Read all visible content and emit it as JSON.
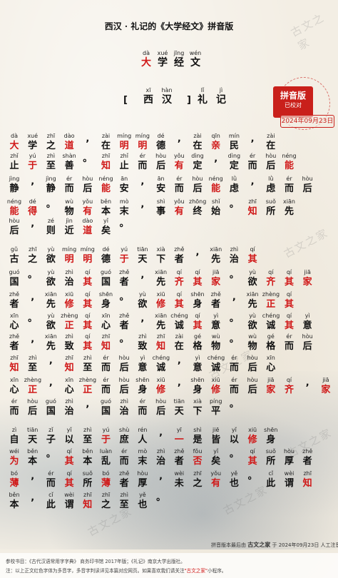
{
  "title": "西汉 · 礼记的《大学经文》拼音版",
  "heading": [
    [
      "dà",
      "大",
      1
    ],
    [
      "xué",
      "学",
      0
    ],
    [
      "jīng",
      "经",
      0
    ],
    [
      "wén",
      "文",
      0
    ]
  ],
  "author_line": {
    "open": "[",
    "close": "]",
    "dynasty": [
      [
        "xī",
        "西"
      ],
      [
        "hàn",
        "汉"
      ]
    ],
    "name": [
      [
        "lǐ",
        "礼"
      ],
      [
        "jì",
        "记"
      ]
    ]
  },
  "seal": {
    "title": "拼音版",
    "subtitle": "已校对",
    "date": "2024年09月23日"
  },
  "lines": [
    [
      [
        "dà",
        "大",
        1
      ],
      [
        "xué",
        "学",
        0
      ],
      [
        "zhī",
        "之",
        0
      ],
      [
        "dào",
        "道",
        1
      ],
      [
        "",
        ",",
        0
      ],
      [
        "zài",
        "在",
        0
      ],
      [
        "míng",
        "明",
        1
      ],
      [
        "míng",
        "明",
        1
      ],
      [
        "dé",
        "德",
        0
      ],
      [
        "",
        ",",
        0
      ],
      [
        "zài",
        "在",
        0
      ],
      [
        "qīn",
        "亲",
        1
      ],
      [
        "mín",
        "民",
        0
      ],
      [
        "",
        ",",
        0
      ],
      [
        "zài",
        "在",
        0
      ]
    ],
    [
      [
        "zhǐ",
        "止",
        0
      ],
      [
        "yú",
        "于",
        1
      ],
      [
        "zhì",
        "至",
        0
      ],
      [
        "shàn",
        "善",
        0
      ],
      [
        "",
        "。",
        0
      ],
      [
        "zhī",
        "知",
        1
      ],
      [
        "zhǐ",
        "止",
        0
      ],
      [
        "ér",
        "而",
        0
      ],
      [
        "hòu",
        "后",
        0
      ],
      [
        "yǒu",
        "有",
        1
      ],
      [
        "dìng",
        "定",
        0
      ],
      [
        "",
        ",",
        0
      ],
      [
        "dìng",
        "定",
        0
      ],
      [
        "ér",
        "而",
        0
      ],
      [
        "hòu",
        "后",
        0
      ],
      [
        "néng",
        "能",
        1
      ]
    ],
    [
      [
        "jìng",
        "静",
        0
      ],
      [
        "",
        ",",
        0
      ],
      [
        "jìng",
        "静",
        0
      ],
      [
        "ér",
        "而",
        0
      ],
      [
        "hòu",
        "后",
        0
      ],
      [
        "néng",
        "能",
        1
      ],
      [
        "ān",
        "安",
        0
      ],
      [
        "",
        ",",
        0
      ],
      [
        "ān",
        "安",
        0
      ],
      [
        "ér",
        "而",
        0
      ],
      [
        "hòu",
        "后",
        0
      ],
      [
        "néng",
        "能",
        1
      ],
      [
        "lǜ",
        "虑",
        0
      ],
      [
        "",
        ",",
        0
      ],
      [
        "lǜ",
        "虑",
        0
      ],
      [
        "ér",
        "而",
        0
      ],
      [
        "hòu",
        "后",
        0
      ]
    ],
    [
      [
        "néng",
        "能",
        1
      ],
      [
        "dé",
        "得",
        1
      ],
      [
        "",
        "。",
        0
      ],
      [
        "wù",
        "物",
        0
      ],
      [
        "yǒu",
        "有",
        1
      ],
      [
        "běn",
        "本",
        0
      ],
      [
        "mò",
        "末",
        0
      ],
      [
        "",
        ",",
        0
      ],
      [
        "shì",
        "事",
        0
      ],
      [
        "yǒu",
        "有",
        1
      ],
      [
        "zhōng",
        "终",
        0
      ],
      [
        "shǐ",
        "始",
        0
      ],
      [
        "",
        "。",
        0
      ],
      [
        "zhī",
        "知",
        1
      ],
      [
        "suǒ",
        "所",
        0
      ],
      [
        "xiān",
        "先",
        0
      ]
    ],
    [
      [
        "hòu",
        "后",
        0
      ],
      [
        "",
        ",",
        0
      ],
      [
        "zé",
        "则",
        0
      ],
      [
        "jìn",
        "近",
        0
      ],
      [
        "dào",
        "道",
        1
      ],
      [
        "yǐ",
        "矣",
        0
      ],
      [
        "",
        "。",
        0
      ]
    ],
    [
      [
        "gǔ",
        "古",
        0
      ],
      [
        "zhī",
        "之",
        0
      ],
      [
        "yù",
        "欲",
        0
      ],
      [
        "míng",
        "明",
        1
      ],
      [
        "míng",
        "明",
        1
      ],
      [
        "dé",
        "德",
        0
      ],
      [
        "yú",
        "于",
        1
      ],
      [
        "tiān",
        "天",
        0
      ],
      [
        "xià",
        "下",
        0
      ],
      [
        "zhě",
        "者",
        0
      ],
      [
        "",
        ",",
        0
      ],
      [
        "xiān",
        "先",
        0
      ],
      [
        "zhì",
        "治",
        0
      ],
      [
        "qí",
        "其",
        1
      ]
    ],
    [
      [
        "guó",
        "国",
        0
      ],
      [
        "",
        "。",
        0
      ],
      [
        "yù",
        "欲",
        0
      ],
      [
        "zhì",
        "治",
        0
      ],
      [
        "qí",
        "其",
        1
      ],
      [
        "guó",
        "国",
        0
      ],
      [
        "zhě",
        "者",
        0
      ],
      [
        "",
        ",",
        0
      ],
      [
        "xiān",
        "先",
        0
      ],
      [
        "qí",
        "齐",
        1
      ],
      [
        "qí",
        "其",
        1
      ],
      [
        "jiā",
        "家",
        1
      ],
      [
        "",
        "。",
        0
      ],
      [
        "yù",
        "欲",
        0
      ],
      [
        "qí",
        "齐",
        1
      ],
      [
        "qí",
        "其",
        1
      ],
      [
        "jiā",
        "家",
        1
      ]
    ],
    [
      [
        "zhě",
        "者",
        0
      ],
      [
        "",
        ",",
        0
      ],
      [
        "xiān",
        "先",
        0
      ],
      [
        "xiū",
        "修",
        1
      ],
      [
        "qí",
        "其",
        1
      ],
      [
        "shēn",
        "身",
        0
      ],
      [
        "",
        "。",
        0
      ],
      [
        "yù",
        "欲",
        0
      ],
      [
        "xiū",
        "修",
        1
      ],
      [
        "qí",
        "其",
        1
      ],
      [
        "shēn",
        "身",
        0
      ],
      [
        "zhě",
        "者",
        0
      ],
      [
        "",
        ",",
        0
      ],
      [
        "xiān",
        "先",
        0
      ],
      [
        "zhèng",
        "正",
        1
      ],
      [
        "qí",
        "其",
        1
      ]
    ],
    [
      [
        "xīn",
        "心",
        0
      ],
      [
        "",
        "。",
        0
      ],
      [
        "yù",
        "欲",
        0
      ],
      [
        "zhèng",
        "正",
        1
      ],
      [
        "qí",
        "其",
        1
      ],
      [
        "xīn",
        "心",
        0
      ],
      [
        "zhě",
        "者",
        0
      ],
      [
        "",
        ",",
        0
      ],
      [
        "xiān",
        "先",
        0
      ],
      [
        "chéng",
        "诚",
        0
      ],
      [
        "qí",
        "其",
        1
      ],
      [
        "yì",
        "意",
        0
      ],
      [
        "",
        "。",
        0
      ],
      [
        "yù",
        "欲",
        0
      ],
      [
        "chéng",
        "诚",
        0
      ],
      [
        "qí",
        "其",
        1
      ],
      [
        "yì",
        "意",
        0
      ]
    ],
    [
      [
        "zhě",
        "者",
        0
      ],
      [
        "",
        ",",
        0
      ],
      [
        "xiān",
        "先",
        0
      ],
      [
        "zhì",
        "致",
        0
      ],
      [
        "qí",
        "其",
        1
      ],
      [
        "zhī",
        "知",
        1
      ],
      [
        "",
        "。",
        0
      ],
      [
        "zhì",
        "致",
        0
      ],
      [
        "zhī",
        "知",
        1
      ],
      [
        "zài",
        "在",
        0
      ],
      [
        "gé",
        "格",
        0
      ],
      [
        "wù",
        "物",
        0
      ],
      [
        "",
        "。",
        0
      ],
      [
        "wù",
        "物",
        0
      ],
      [
        "gé",
        "格",
        0
      ],
      [
        "ér",
        "而",
        0
      ],
      [
        "hòu",
        "后",
        0
      ]
    ],
    [
      [
        "zhī",
        "知",
        1
      ],
      [
        "zhì",
        "至",
        0
      ],
      [
        "",
        ",",
        0
      ],
      [
        "zhī",
        "知",
        1
      ],
      [
        "zhì",
        "至",
        0
      ],
      [
        "ér",
        "而",
        0
      ],
      [
        "hòu",
        "后",
        0
      ],
      [
        "yì",
        "意",
        0
      ],
      [
        "chéng",
        "诚",
        0
      ],
      [
        "",
        ",",
        0
      ],
      [
        "yì",
        "意",
        0
      ],
      [
        "chéng",
        "诚",
        0
      ],
      [
        "ér",
        "而",
        0
      ],
      [
        "hòu",
        "后",
        0
      ],
      [
        "xīn",
        "心",
        0
      ]
    ],
    [
      [
        "xīn",
        "心",
        0
      ],
      [
        "zhèng",
        "正",
        1
      ],
      [
        "",
        ",",
        0
      ],
      [
        "xīn",
        "心",
        0
      ],
      [
        "zhèng",
        "正",
        1
      ],
      [
        "ér",
        "而",
        0
      ],
      [
        "hòu",
        "后",
        0
      ],
      [
        "shēn",
        "身",
        0
      ],
      [
        "xiū",
        "修",
        1
      ],
      [
        "",
        ",",
        0
      ],
      [
        "shēn",
        "身",
        0
      ],
      [
        "xiū",
        "修",
        1
      ],
      [
        "ér",
        "而",
        0
      ],
      [
        "hòu",
        "后",
        0
      ],
      [
        "jiā",
        "家",
        1
      ],
      [
        "qí",
        "齐",
        1
      ],
      [
        "",
        ",",
        0
      ],
      [
        "jiā",
        "家",
        1
      ],
      [
        "qí",
        "齐",
        1
      ]
    ],
    [
      [
        "ér",
        "而",
        0
      ],
      [
        "hòu",
        "后",
        0
      ],
      [
        "guó",
        "国",
        0
      ],
      [
        "zhì",
        "治",
        0
      ],
      [
        "",
        ",",
        0
      ],
      [
        "guó",
        "国",
        0
      ],
      [
        "zhì",
        "治",
        0
      ],
      [
        "ér",
        "而",
        0
      ],
      [
        "hòu",
        "后",
        0
      ],
      [
        "tiān",
        "天",
        0
      ],
      [
        "xià",
        "下",
        0
      ],
      [
        "píng",
        "平",
        0
      ],
      [
        "",
        "。",
        0
      ]
    ],
    [
      [
        "zì",
        "自",
        0
      ],
      [
        "tiān",
        "天",
        0
      ],
      [
        "zǐ",
        "子",
        0
      ],
      [
        "yǐ",
        "以",
        0
      ],
      [
        "zhì",
        "至",
        0
      ],
      [
        "yú",
        "于",
        1
      ],
      [
        "shù",
        "庶",
        0
      ],
      [
        "rén",
        "人",
        0
      ],
      [
        "",
        ",",
        0
      ],
      [
        "yī",
        "一",
        1
      ],
      [
        "shì",
        "是",
        0
      ],
      [
        "jiē",
        "皆",
        0
      ],
      [
        "yǐ",
        "以",
        0
      ],
      [
        "xiū",
        "修",
        1
      ],
      [
        "shēn",
        "身",
        0
      ]
    ],
    [
      [
        "wéi",
        "为",
        1
      ],
      [
        "běn",
        "本",
        0
      ],
      [
        "",
        "。",
        0
      ],
      [
        "qí",
        "其",
        1
      ],
      [
        "běn",
        "本",
        0
      ],
      [
        "luàn",
        "乱",
        0
      ],
      [
        "ér",
        "而",
        0
      ],
      [
        "mò",
        "末",
        0
      ],
      [
        "zhì",
        "治",
        0
      ],
      [
        "zhě",
        "者",
        0
      ],
      [
        "fǒu",
        "否",
        1
      ],
      [
        "yǐ",
        "矣",
        0
      ],
      [
        "",
        "。",
        0
      ],
      [
        "qí",
        "其",
        1
      ],
      [
        "suǒ",
        "所",
        0
      ],
      [
        "hòu",
        "厚",
        0
      ],
      [
        "zhě",
        "者",
        0
      ]
    ],
    [
      [
        "bó",
        "薄",
        1
      ],
      [
        "",
        ",",
        0
      ],
      [
        "ér",
        "而",
        0
      ],
      [
        "qí",
        "其",
        1
      ],
      [
        "suǒ",
        "所",
        0
      ],
      [
        "bó",
        "薄",
        1
      ],
      [
        "zhě",
        "者",
        0
      ],
      [
        "hòu",
        "厚",
        0
      ],
      [
        "",
        ",",
        0
      ],
      [
        "wèi",
        "未",
        0
      ],
      [
        "zhī",
        "之",
        0
      ],
      [
        "yǒu",
        "有",
        1
      ],
      [
        "yě",
        "也",
        0
      ],
      [
        "",
        "。",
        0
      ],
      [
        "cǐ",
        "此",
        0
      ],
      [
        "wèi",
        "谓",
        0
      ],
      [
        "zhī",
        "知",
        1
      ]
    ],
    [
      [
        "běn",
        "本",
        0
      ],
      [
        "",
        ",",
        0
      ],
      [
        "cǐ",
        "此",
        0
      ],
      [
        "wèi",
        "谓",
        0
      ],
      [
        "zhī",
        "知",
        1
      ],
      [
        "zhī",
        "之",
        0
      ],
      [
        "zhì",
        "至",
        0
      ],
      [
        "yě",
        "也",
        0
      ],
      [
        "",
        "。",
        0
      ]
    ]
  ],
  "colophon": {
    "prefix": "拼音版本最后由",
    "brand": "古文之家",
    "suffix": "于 2024年09月23日 人工注音"
  },
  "footer": {
    "ref": "参校书目：《古代汉语常用字字典》 商务印书馆 2017年版；《礼记》南京大学出版社。",
    "note_pre": "注：以上正文红色字体为多音字，多音字判读详见本篇对应网页。如果喜欢我们请关注",
    "note_hl": "\"古文之家\"",
    "note_post": "小程序。"
  },
  "watermarks": [
    "古文之家",
    "古文之家",
    "古文之家",
    "古文之家",
    "古文之家",
    "古文之家"
  ]
}
